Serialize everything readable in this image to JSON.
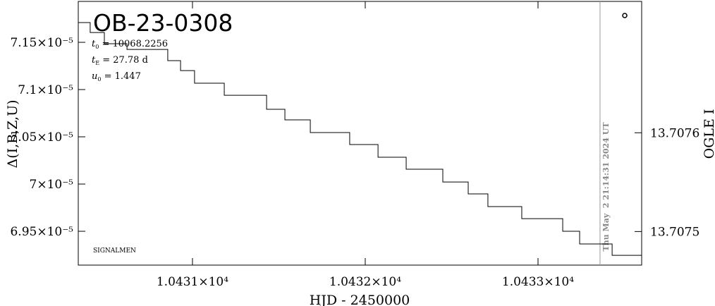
{
  "chart_data": {
    "type": "line",
    "title": "OB-23-0308",
    "params": [
      {
        "symbol": "t",
        "sub": "0",
        "rest": " = 10068.2256"
      },
      {
        "symbol": "t",
        "sub": "E",
        "rest": " = 27.78 d"
      },
      {
        "symbol": "u",
        "sub": "0",
        "rest": " = 1.447"
      }
    ],
    "footer": "SIGNALMEN",
    "x_label": "HJD - 2450000",
    "y_label": "Δ(I,B,Z,U)",
    "y2_label": "OGLE I",
    "date_marker": {
      "x": 10433.359,
      "label": "Thu May  2 21:14:31 2024 UT"
    },
    "xlim": [
      10430.339,
      10433.6
    ],
    "xticks": [
      {
        "value": 10431,
        "label": "1.0431×10⁴"
      },
      {
        "value": 10432,
        "label": "1.0432×10⁴"
      },
      {
        "value": 10433,
        "label": "1.0433×10⁴"
      }
    ],
    "ylim": [
      6.9142e-05,
      7.1933e-05
    ],
    "yticks": [
      {
        "value": 7.15e-05,
        "label": "7.15×10⁻⁵"
      },
      {
        "value": 7.1e-05,
        "label": "7.1×10⁻⁵"
      },
      {
        "value": 7.05e-05,
        "label": "7.05×10⁻⁵"
      },
      {
        "value": 7e-05,
        "label": "7×10⁻⁵"
      },
      {
        "value": 6.95e-05,
        "label": "6.95×10⁻⁵"
      }
    ],
    "y2lim": [
      13.707466,
      13.707733
    ],
    "y2ticks": [
      13.7075,
      13.7076
    ],
    "series": [
      {
        "color": "#000000",
        "x": [
          10430.339,
          10430.408,
          10430.408,
          10430.49,
          10430.49,
          10430.621,
          10430.621,
          10430.857,
          10430.857,
          10430.931,
          10430.931,
          10431.012,
          10431.012,
          10431.184,
          10431.184,
          10431.429,
          10431.429,
          10431.535,
          10431.535,
          10431.682,
          10431.682,
          10431.91,
          10431.91,
          10432.074,
          10432.074,
          10432.237,
          10432.237,
          10432.449,
          10432.449,
          10432.596,
          10432.596,
          10432.71,
          10432.71,
          10432.906,
          10432.906,
          10433.143,
          10433.143,
          10433.241,
          10433.241,
          10433.429,
          10433.429,
          10433.6
        ],
        "values": [
          7.1709e-05,
          7.1709e-05,
          7.1604e-05,
          7.1604e-05,
          7.1485e-05,
          7.1485e-05,
          7.1425e-05,
          7.1425e-05,
          7.1306e-05,
          7.1306e-05,
          7.1201e-05,
          7.1201e-05,
          7.1067e-05,
          7.1067e-05,
          7.094e-05,
          7.094e-05,
          7.0791e-05,
          7.0791e-05,
          7.0679e-05,
          7.0679e-05,
          7.0545e-05,
          7.0545e-05,
          7.0418e-05,
          7.0418e-05,
          7.0284e-05,
          7.0284e-05,
          7.0157e-05,
          7.0157e-05,
          7.0022e-05,
          7.0022e-05,
          6.9896e-05,
          6.9896e-05,
          6.9761e-05,
          6.9761e-05,
          6.9634e-05,
          6.9634e-05,
          6.95e-05,
          6.95e-05,
          6.9366e-05,
          6.9366e-05,
          6.9246e-05,
          6.9246e-05
        ]
      }
    ]
  }
}
